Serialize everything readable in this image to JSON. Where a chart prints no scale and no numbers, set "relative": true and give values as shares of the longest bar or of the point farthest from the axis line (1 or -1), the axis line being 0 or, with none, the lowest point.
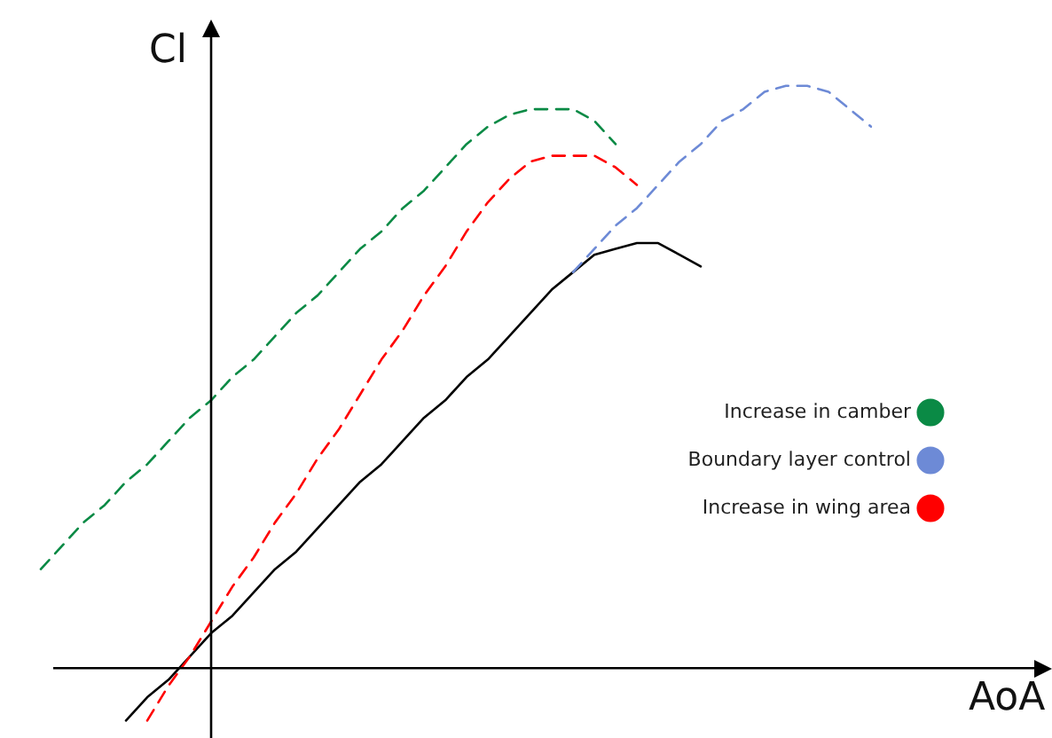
{
  "chart_data": {
    "type": "line",
    "relative": true,
    "xlabel": "AoA",
    "ylabel": "Cl",
    "legend": "right",
    "marker": "none",
    "categories": [
      null,
      null,
      null,
      null,
      null,
      null,
      null,
      null,
      null,
      null,
      null,
      null,
      null,
      null,
      null,
      null,
      null,
      null,
      null,
      null,
      null,
      null,
      null,
      null,
      null,
      null,
      null,
      null,
      null,
      null,
      null,
      null,
      null,
      null,
      null,
      null,
      null,
      null,
      null,
      null,
      null
    ],
    "series": [
      {
        "name": "Increase in camber",
        "color": "#0a8a45",
        "line_style": "dashed",
        "values": [
          null,
          0.17,
          0.21,
          0.25,
          0.28,
          0.32,
          0.35,
          0.39,
          0.43,
          0.46,
          0.5,
          0.53,
          0.57,
          0.61,
          0.64,
          0.68,
          0.72,
          0.75,
          0.79,
          0.82,
          0.86,
          0.9,
          0.93,
          0.95,
          0.96,
          0.96,
          0.96,
          0.94,
          0.9,
          null,
          null,
          null,
          null,
          null,
          null,
          null,
          null,
          null,
          null,
          null,
          null
        ]
      },
      {
        "name": "Boundary layer control",
        "color": "#6d8ad6",
        "line_style": "dashed",
        "values": [
          null,
          null,
          null,
          null,
          null,
          null,
          null,
          null,
          null,
          null,
          null,
          null,
          null,
          null,
          null,
          null,
          null,
          null,
          null,
          null,
          null,
          null,
          null,
          null,
          null,
          null,
          0.68,
          0.72,
          0.76,
          0.79,
          0.83,
          0.87,
          0.9,
          0.94,
          0.96,
          0.99,
          1.0,
          1.0,
          0.99,
          0.96,
          0.93
        ]
      },
      {
        "name": "Increase in wing area",
        "color": "#ff0000",
        "line_style": "dashed",
        "values": [
          null,
          null,
          null,
          null,
          null,
          null,
          -0.09,
          -0.03,
          0.02,
          0.08,
          0.14,
          0.19,
          0.25,
          0.3,
          0.36,
          0.41,
          0.47,
          0.53,
          0.58,
          0.64,
          0.69,
          0.75,
          0.8,
          0.84,
          0.87,
          0.88,
          0.88,
          0.88,
          0.86,
          0.83,
          null,
          null,
          null,
          null,
          null,
          null,
          null,
          null,
          null,
          null,
          null
        ]
      },
      {
        "color": "#000000",
        "line_style": "solid",
        "values": [
          null,
          null,
          null,
          null,
          null,
          -0.09,
          -0.05,
          -0.02,
          0.02,
          0.06,
          0.09,
          0.13,
          0.17,
          0.2,
          0.24,
          0.28,
          0.32,
          0.35,
          0.39,
          0.43,
          0.46,
          0.5,
          0.53,
          0.57,
          0.61,
          0.65,
          0.68,
          0.71,
          0.72,
          0.73,
          0.73,
          0.71,
          0.69,
          null,
          null,
          null,
          null,
          null,
          null,
          null,
          null
        ]
      }
    ]
  }
}
